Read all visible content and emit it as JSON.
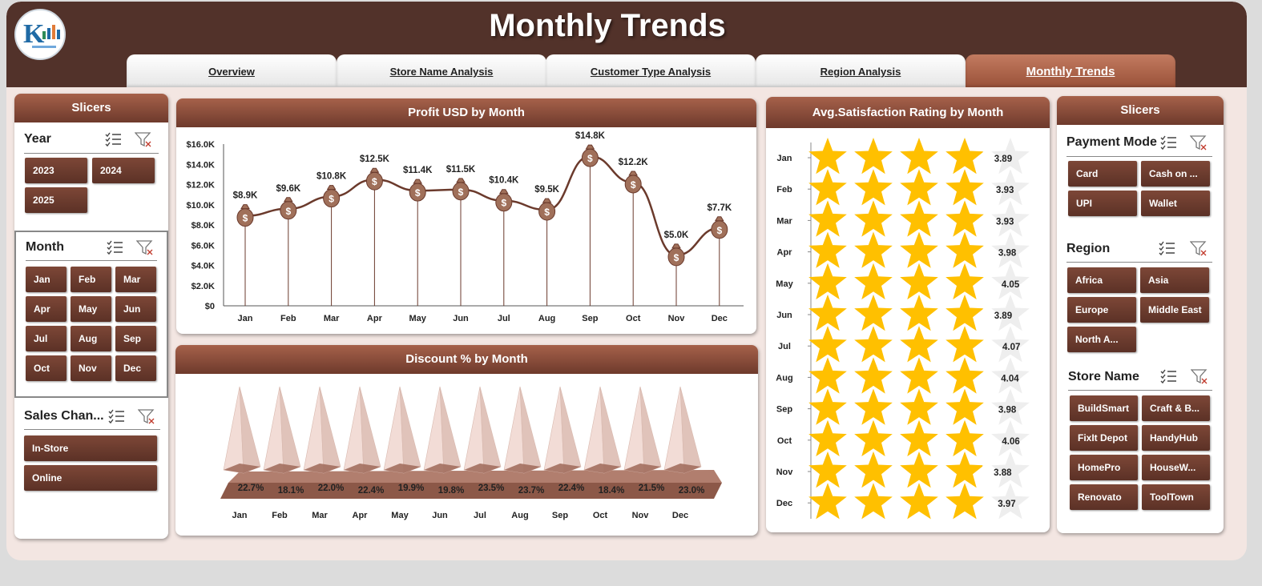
{
  "header": {
    "title": "Monthly Trends"
  },
  "tabs": [
    {
      "label": "Overview",
      "active": false
    },
    {
      "label": "Store Name Analysis",
      "active": false
    },
    {
      "label": "Customer Type Analysis",
      "active": false
    },
    {
      "label": "Region Analysis",
      "active": false
    },
    {
      "label": "Monthly Trends",
      "active": true
    }
  ],
  "left_slicers": {
    "title": "Slicers",
    "year": {
      "label": "Year",
      "options": [
        "2023",
        "2024",
        "2025"
      ]
    },
    "month": {
      "label": "Month",
      "options": [
        "Jan",
        "Feb",
        "Mar",
        "Apr",
        "May",
        "Jun",
        "Jul",
        "Aug",
        "Sep",
        "Oct",
        "Nov",
        "Dec"
      ]
    },
    "sales_channel": {
      "label": "Sales Chan...",
      "options": [
        "In-Store",
        "Online"
      ]
    }
  },
  "right_slicers": {
    "title": "Slicers",
    "payment_mode": {
      "label": "Payment Mode",
      "options": [
        "Card",
        "Cash on ...",
        "UPI",
        "Wallet"
      ]
    },
    "region": {
      "label": "Region",
      "options": [
        "Africa",
        "Asia",
        "Europe",
        "Middle East",
        "North A..."
      ]
    },
    "store_name": {
      "label": "Store Name",
      "options": [
        "BuildSmart",
        "Craft & B...",
        "FixIt Depot",
        "HandyHub",
        "HomePro",
        "HouseW...",
        "Renovato",
        "ToolTown"
      ]
    }
  },
  "chart_data": [
    {
      "type": "line",
      "title": "Profit USD by Month",
      "categories": [
        "Jan",
        "Feb",
        "Mar",
        "Apr",
        "May",
        "Jun",
        "Jul",
        "Aug",
        "Sep",
        "Oct",
        "Nov",
        "Dec"
      ],
      "values": [
        8.9,
        9.6,
        10.8,
        12.5,
        11.4,
        11.5,
        10.4,
        9.5,
        14.8,
        12.2,
        5.0,
        7.7
      ],
      "data_labels": [
        "$8.9K",
        "$9.6K",
        "$10.8K",
        "$12.5K",
        "$11.4K",
        "$11.5K",
        "$10.4K",
        "$9.5K",
        "$14.8K",
        "$12.2K",
        "$5.0K",
        "$7.7K"
      ],
      "ytick_labels": [
        "$0",
        "$2.0K",
        "$4.0K",
        "$6.0K",
        "$8.0K",
        "$10.0K",
        "$12.0K",
        "$14.0K",
        "$16.0K"
      ],
      "ylim": [
        0,
        16
      ],
      "marker": "money-bag",
      "colors": {
        "line": "#6b3a2c",
        "marker": "#a0705a"
      }
    },
    {
      "type": "bar",
      "title": "Discount % by Month",
      "categories": [
        "Jan",
        "Feb",
        "Mar",
        "Apr",
        "May",
        "Jun",
        "Jul",
        "Aug",
        "Sep",
        "Oct",
        "Nov",
        "Dec"
      ],
      "values": [
        22.7,
        18.1,
        22.0,
        22.4,
        19.9,
        19.8,
        23.5,
        23.7,
        22.4,
        18.4,
        21.5,
        23.0
      ],
      "data_labels": [
        "22.7%",
        "18.1%",
        "22.0%",
        "22.4%",
        "19.9%",
        "19.8%",
        "23.5%",
        "23.7%",
        "22.4%",
        "18.4%",
        "21.5%",
        "23.0%"
      ],
      "shape": "pyramid",
      "colors": {
        "pyramid": "#f2dcd6",
        "base": "#9c6555"
      }
    },
    {
      "type": "bar",
      "title": "Avg.Satisfaction Rating by Month",
      "categories": [
        "Jan",
        "Feb",
        "Mar",
        "Apr",
        "May",
        "Jun",
        "Jul",
        "Aug",
        "Sep",
        "Oct",
        "Nov",
        "Dec"
      ],
      "values": [
        3.89,
        3.93,
        3.93,
        3.98,
        4.05,
        3.89,
        4.07,
        4.04,
        3.98,
        4.06,
        3.88,
        3.97
      ],
      "data_labels": [
        "3.89",
        "3.93",
        "3.93",
        "3.98",
        "4.05",
        "3.89",
        "4.07",
        "4.04",
        "3.98",
        "4.06",
        "3.88",
        "3.97"
      ],
      "xlim": [
        0,
        5
      ],
      "shape": "stars",
      "colors": {
        "star": "#ffc000",
        "star_empty": "#eeeeee"
      }
    }
  ],
  "colors": {
    "header_bg": "#52322a",
    "accent": "#7d4737",
    "panel_head": "#8b4b38",
    "background": "#f3e6e2"
  }
}
